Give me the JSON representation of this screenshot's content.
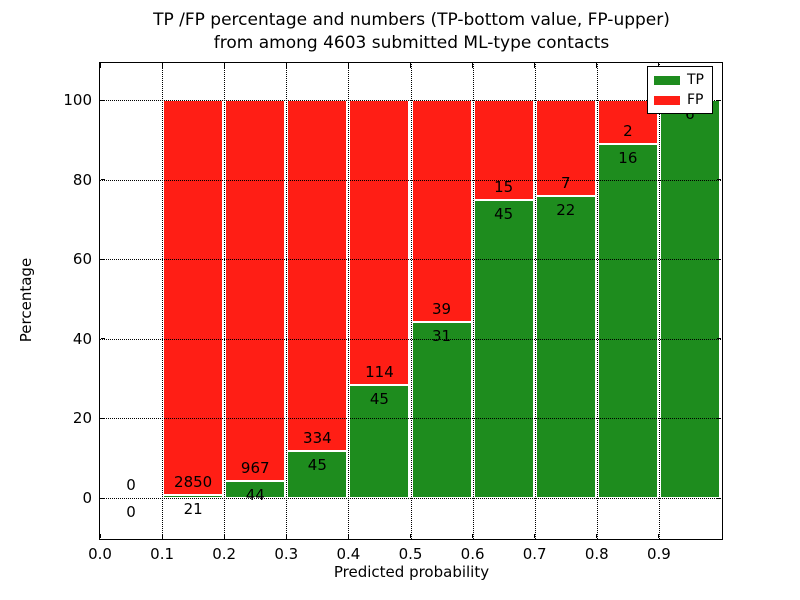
{
  "figure": {
    "title_line1": "TP /FP percentage and numbers (TP-bottom value, FP-upper)",
    "title_line2": "from among 4603 submitted ML-type contacts"
  },
  "axes": {
    "xlabel": "Predicted probability",
    "ylabel": "Percentage",
    "x_tick_labels": [
      "0.0",
      "0.1",
      "0.2",
      "0.3",
      "0.4",
      "0.5",
      "0.6",
      "0.7",
      "0.8",
      "0.9"
    ],
    "y_tick_labels": [
      "0",
      "20",
      "40",
      "60",
      "80",
      "100"
    ]
  },
  "legend": {
    "items": [
      {
        "label": "TP",
        "color": "#1e8c1e"
      },
      {
        "label": "FP",
        "color": "#ff1e15"
      }
    ]
  },
  "chart_data": {
    "type": "bar",
    "stacked": true,
    "normalized_to_percent": true,
    "title": "TP /FP percentage and numbers (TP-bottom value, FP-upper) from among 4603 submitted ML-type contacts",
    "xlabel": "Predicted probability",
    "ylabel": "Percentage",
    "total_submitted": 4603,
    "bin_width": 0.1,
    "bin_starts": [
      0.0,
      0.1,
      0.2,
      0.3,
      0.4,
      0.5,
      0.6,
      0.7,
      0.8,
      0.9
    ],
    "series": [
      {
        "name": "TP",
        "color": "#1e8c1e",
        "counts": [
          0,
          21,
          44,
          45,
          45,
          31,
          45,
          22,
          16,
          6
        ]
      },
      {
        "name": "FP",
        "color": "#ff1e15",
        "counts": [
          0,
          2850,
          967,
          334,
          114,
          39,
          15,
          7,
          2,
          0
        ]
      }
    ],
    "tp_percent_of_bin": [
      0,
      0.73,
      4.35,
      11.87,
      28.3,
      44.29,
      75.0,
      75.86,
      88.89,
      100.0
    ],
    "xlim": [
      0.0,
      1.0
    ],
    "ylim": [
      -10,
      110
    ],
    "x_ticks": [
      0.0,
      0.1,
      0.2,
      0.3,
      0.4,
      0.5,
      0.6,
      0.7,
      0.8,
      0.9
    ],
    "y_ticks": [
      0,
      20,
      40,
      60,
      80,
      100
    ],
    "grid": "dotted",
    "legend_position": "upper right"
  }
}
